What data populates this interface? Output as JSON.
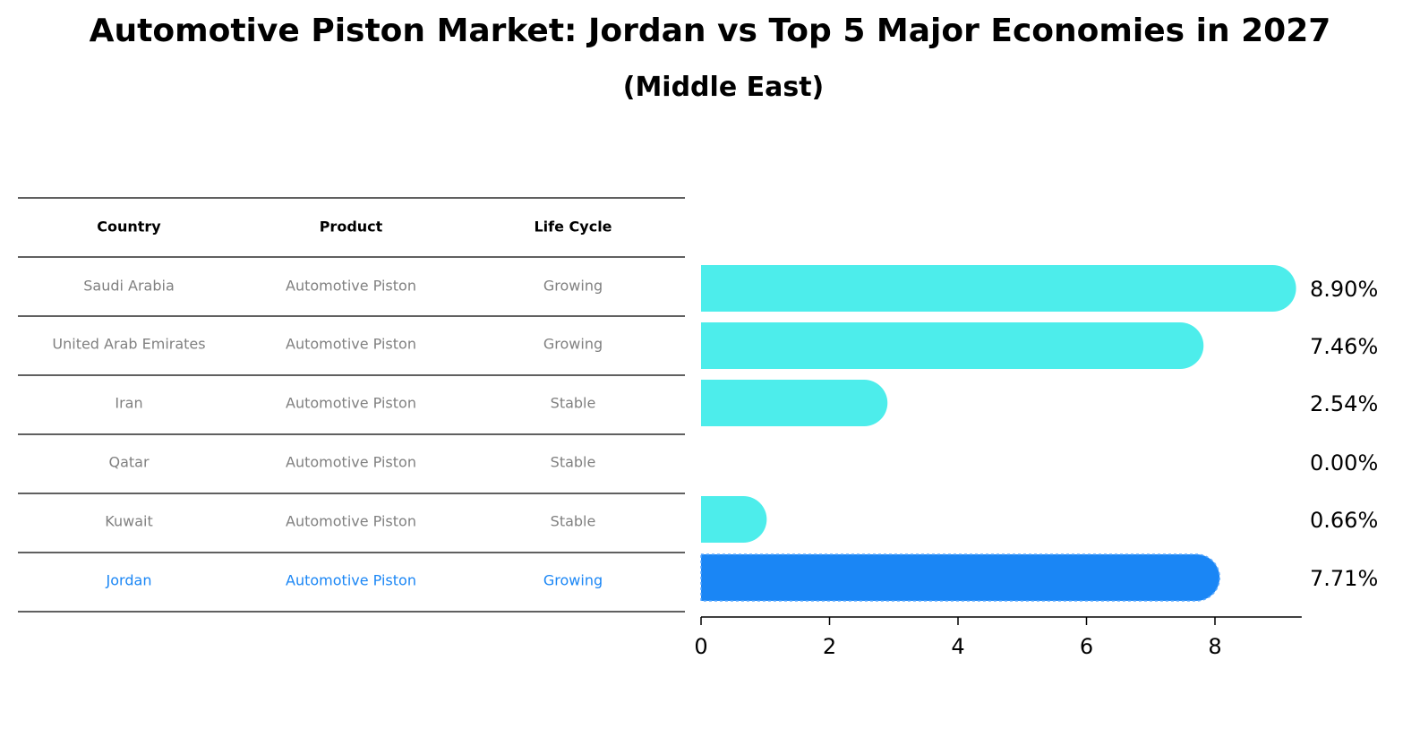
{
  "chart_data": {
    "type": "bar",
    "orientation": "horizontal",
    "title": "Automotive Piston Market: Jordan vs Top 5 Major Economies in 2027",
    "subtitle": "(Middle East)",
    "table": {
      "columns": [
        "Country",
        "Product",
        "Life Cycle"
      ],
      "rows": [
        {
          "country": "Saudi Arabia",
          "product": "Automotive Piston",
          "life_cycle": "Growing"
        },
        {
          "country": "United Arab Emirates",
          "product": "Automotive Piston",
          "life_cycle": "Growing"
        },
        {
          "country": "Iran",
          "product": "Automotive Piston",
          "life_cycle": "Stable"
        },
        {
          "country": "Qatar",
          "product": "Automotive Piston",
          "life_cycle": "Stable"
        },
        {
          "country": "Kuwait",
          "product": "Automotive Piston",
          "life_cycle": "Stable"
        },
        {
          "country": "Jordan",
          "product": "Automotive Piston",
          "life_cycle": "Growing"
        }
      ]
    },
    "categories": [
      "Saudi Arabia",
      "United Arab Emirates",
      "Iran",
      "Qatar",
      "Kuwait",
      "Jordan"
    ],
    "values": [
      8.9,
      7.46,
      2.54,
      0.0,
      0.66,
      7.71
    ],
    "value_labels": [
      "8.90%",
      "7.46%",
      "2.54%",
      "0.00%",
      "0.66%",
      "7.71%"
    ],
    "highlight_index": 5,
    "x_ticks": [
      0,
      2,
      4,
      6,
      8
    ],
    "xlim": [
      0,
      9.35
    ],
    "colors": {
      "bar": "#4dedeb",
      "highlight_bar": "#1a86f5",
      "highlight_text": "#1a86f5",
      "row_text": "#808080",
      "header_text": "#000000",
      "rule": "#000000"
    }
  }
}
